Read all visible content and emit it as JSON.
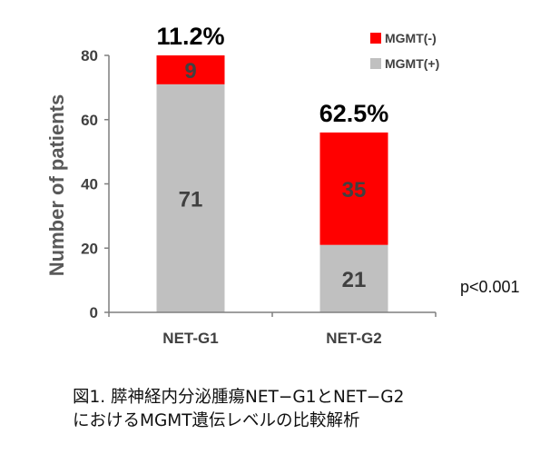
{
  "chart_data": {
    "type": "bar",
    "stacked": true,
    "categories": [
      "NET-G1",
      "NET-G2"
    ],
    "series": [
      {
        "name": "MGMT(+)",
        "color": "#c0c0c0",
        "values": [
          71,
          21
        ]
      },
      {
        "name": "MGMT(-)",
        "color": "#ff0000",
        "values": [
          9,
          35
        ]
      }
    ],
    "bar_top_labels": [
      "11.2%",
      "62.5%"
    ],
    "ylabel": "Number of patients",
    "ylim": [
      0,
      80
    ],
    "yticks": [
      0,
      20,
      40,
      60,
      80
    ],
    "grid": false,
    "legend_position": "top-right",
    "annotation": "p<0.001"
  },
  "caption": {
    "line1": "図1. 膵神経内分泌腫瘍NET−G1とNET−G2",
    "line2": "におけるMGMT遺伝レベルの比較解析"
  }
}
